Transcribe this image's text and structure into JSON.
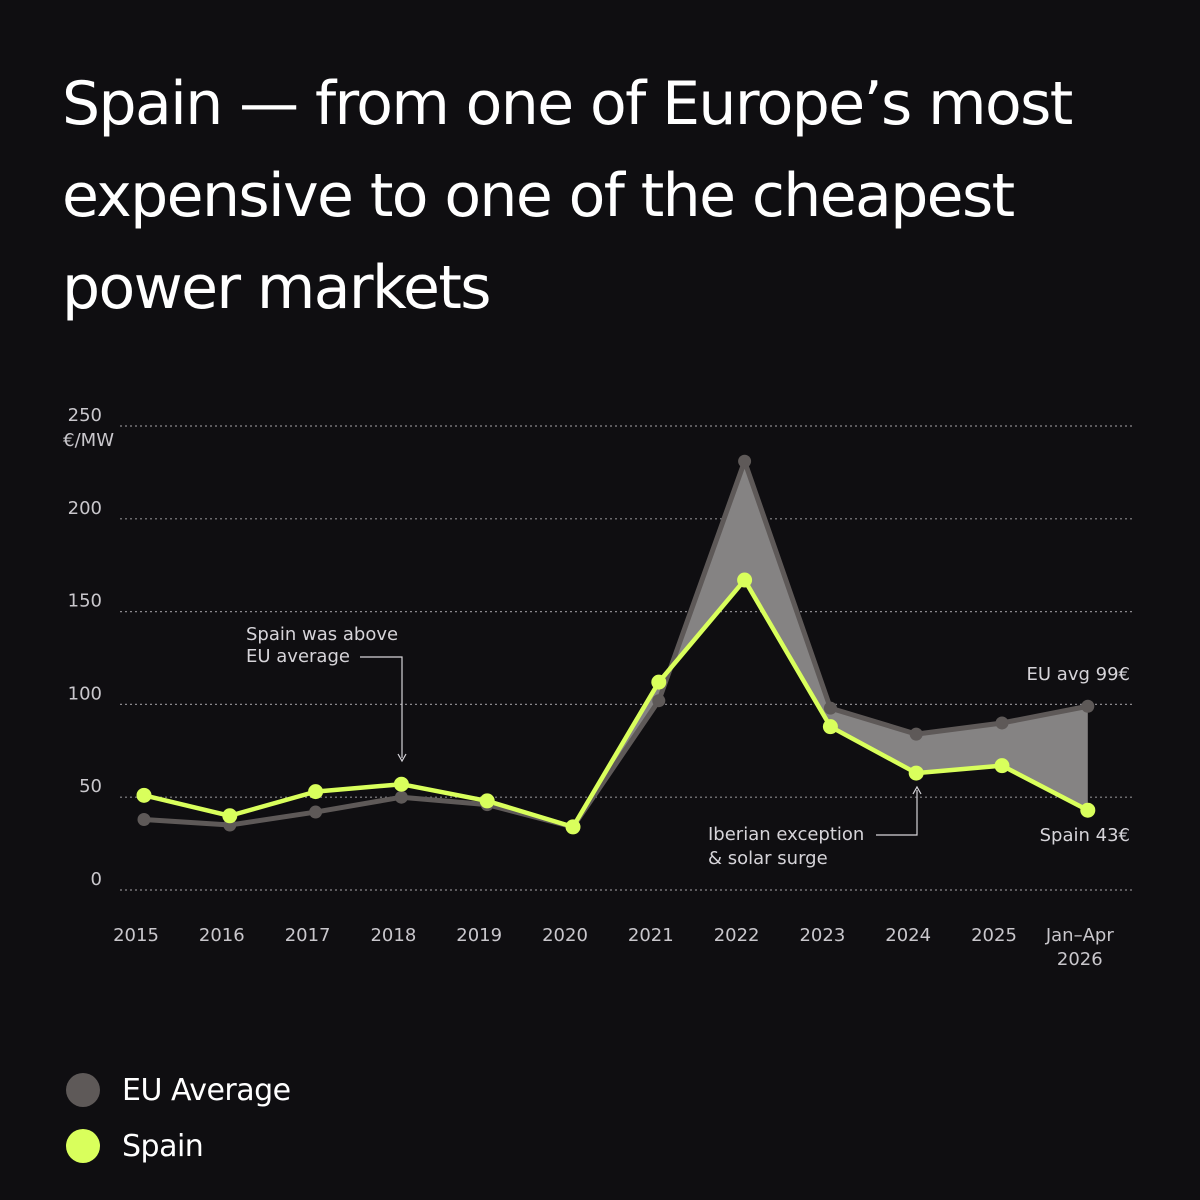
{
  "title_lines": [
    "Spain — from one of Europe’s most",
    "expensive to one of the cheapest",
    "power markets"
  ],
  "colors": {
    "background": "#0f0e11",
    "eu": "#5e5958",
    "spain": "#d9ff5c",
    "gap_fill": "#858383",
    "grid": "#8a888c",
    "text": "#ffffff",
    "axis_text": "#c9c7cc"
  },
  "legend": [
    {
      "label": "EU Average",
      "color": "#5e5958"
    },
    {
      "label": "Spain",
      "color": "#d9ff5c"
    }
  ],
  "chart_data": {
    "type": "line",
    "ylabel": "€/MW",
    "ylim": [
      0,
      250
    ],
    "yticks": [
      0,
      50,
      100,
      150,
      200,
      250
    ],
    "grid": true,
    "categories": [
      "2015",
      "2016",
      "2017",
      "2018",
      "2019",
      "2020",
      "2021",
      "2022",
      "2023",
      "2024",
      "2025",
      "Jan–Apr 2026"
    ],
    "series": [
      {
        "name": "EU Average",
        "color": "#5e5958",
        "values": [
          38,
          35,
          42,
          50,
          46,
          34,
          102,
          231,
          98,
          84,
          90,
          99
        ]
      },
      {
        "name": "Spain",
        "color": "#d9ff5c",
        "values": [
          51,
          40,
          53,
          57,
          48,
          34,
          112,
          167,
          88,
          63,
          67,
          43
        ]
      }
    ],
    "annotations": [
      {
        "text_lines": [
          "Spain was above",
          "EU average"
        ],
        "category": "2018"
      },
      {
        "text_lines": [
          "Iberian exception",
          "& solar surge"
        ],
        "category": "2024"
      },
      {
        "text": "EU avg 99€",
        "category": "Jan–Apr 2026",
        "series": "EU Average"
      },
      {
        "text": "Spain 43€",
        "category": "Jan–Apr 2026",
        "series": "Spain"
      }
    ]
  }
}
